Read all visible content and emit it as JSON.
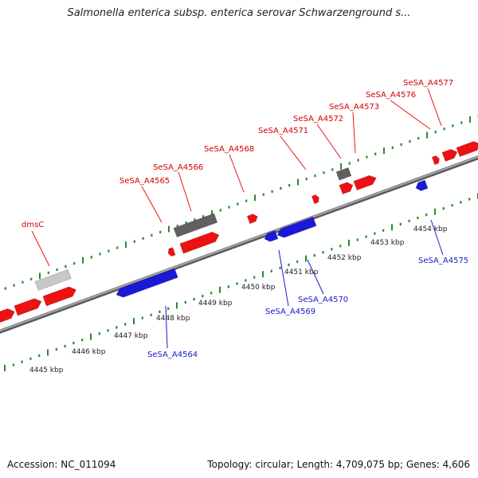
{
  "title": "Salmonella enterica subsp. enterica serovar Schwarzenground s...",
  "footer": {
    "accession": "Accession: NC_011094",
    "summary": "Topology: circular; Length: 4,709,075 bp; Genes: 4,606"
  },
  "colors": {
    "forward_gene": "#ee1111",
    "reverse_gene": "#1a1ad6",
    "other_feature": "#606060",
    "pseudo_feature": "#c8c8c8",
    "tick": "#2a8a2a",
    "backbone": "#8a8a8a"
  },
  "scale_labels": [
    "4445 kbp",
    "4446 kbp",
    "4447 kbp",
    "4448 kbp",
    "4449 kbp",
    "4450 kbp",
    "4451 kbp",
    "4452 kbp",
    "4453 kbp",
    "4454 kbp"
  ],
  "gene_labels_forward": [
    "dmsC",
    "SeSA_A4565",
    "SeSA_A4566",
    "SeSA_A4568",
    "SeSA_A4571",
    "SeSA_A4572",
    "SeSA_A4573",
    "SeSA_A4576",
    "SeSA_A4577"
  ],
  "gene_labels_reverse": [
    "SeSA_A4564",
    "SeSA_A4569",
    "SeSA_A4570",
    "SeSA_A4575"
  ]
}
